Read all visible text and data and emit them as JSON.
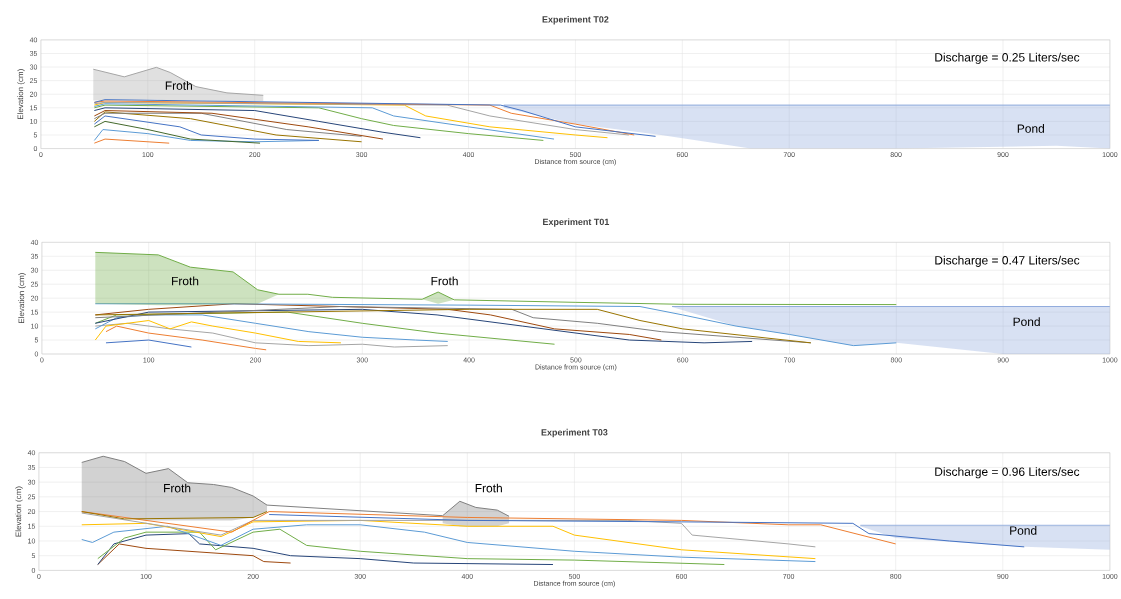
{
  "chart_data": [
    {
      "type": "line",
      "title": "Experiment T02",
      "xlabel": "Distance from source (cm)",
      "ylabel": "Elevation (cm)",
      "xlim": [
        0,
        1000
      ],
      "xticks": [
        0,
        100,
        200,
        300,
        400,
        500,
        600,
        700,
        800,
        900,
        1000
      ],
      "ylim": [
        0,
        40
      ],
      "yticks": [
        0,
        5,
        10,
        15,
        20,
        25,
        30,
        35,
        40
      ],
      "grid": true,
      "annotations": [
        "Discharge = 0.25 Liters/sec",
        "Froth",
        "Pond"
      ],
      "series": [
        {
          "color": "#a6a6a6",
          "x": [
            49,
            78,
            108,
            121,
            145,
            174,
            208
          ],
          "values": [
            29.2,
            26.4,
            29.9,
            28,
            22.8,
            20.5,
            19.6
          ],
          "upper": [
            29.2,
            26.4,
            29.9,
            28,
            22.8,
            20.5,
            19.6
          ],
          "lower": [
            17.7,
            17.8,
            18,
            17.8,
            17.8,
            17.5,
            17.5
          ]
        },
        {
          "color": "#8faadc",
          "x": [
            433,
            500,
            580,
            664,
            800,
            950,
            1000
          ],
          "values": [
            16,
            16,
            16,
            16,
            16,
            16,
            16
          ],
          "upper": [
            16,
            16,
            16,
            16,
            16,
            16,
            16
          ],
          "lower": [
            15,
            9,
            5,
            0,
            0,
            1,
            0
          ]
        },
        {
          "color": "#ed7d31",
          "x": [
            50,
            60,
            120
          ],
          "values": [
            2,
            3.5,
            2
          ]
        },
        {
          "color": "#5b9bd5",
          "x": [
            50,
            58,
            100,
            140,
            200,
            260
          ],
          "values": [
            3,
            7,
            5.5,
            3,
            2.5,
            3
          ]
        },
        {
          "color": "#43682b",
          "x": [
            50,
            60,
            100,
            140,
            205
          ],
          "values": [
            8,
            10,
            7,
            3.5,
            2
          ]
        },
        {
          "color": "#4472c4",
          "x": [
            50,
            60,
            130,
            150,
            200,
            260
          ],
          "values": [
            9,
            12,
            8,
            5,
            3.5,
            3
          ]
        },
        {
          "color": "#997300",
          "x": [
            50,
            60,
            140,
            220,
            300
          ],
          "values": [
            10,
            13.5,
            11,
            5,
            2.5
          ]
        },
        {
          "color": "#7f7f7f",
          "x": [
            50,
            60,
            150,
            230,
            300
          ],
          "values": [
            11,
            13,
            13,
            7,
            4.5
          ]
        },
        {
          "color": "#9e480e",
          "x": [
            50,
            60,
            160,
            250,
            320
          ],
          "values": [
            12,
            14,
            13,
            8,
            3.5
          ]
        },
        {
          "color": "#264478",
          "x": [
            50,
            60,
            200,
            260,
            320,
            355
          ],
          "values": [
            14,
            15,
            14,
            10,
            6,
            4
          ]
        },
        {
          "color": "#70ad47",
          "x": [
            50,
            60,
            260,
            300,
            330,
            400,
            470
          ],
          "values": [
            15,
            16,
            15,
            11,
            8.5,
            5.5,
            3
          ]
        },
        {
          "color": "#5b9bd5",
          "x": [
            50,
            60,
            310,
            330,
            400,
            480
          ],
          "values": [
            15.5,
            16.5,
            15,
            12,
            8,
            3.5
          ]
        },
        {
          "color": "#ffc000",
          "x": [
            50,
            60,
            340,
            360,
            420,
            500,
            530
          ],
          "values": [
            16,
            17,
            16,
            12,
            8,
            5,
            4
          ]
        },
        {
          "color": "#a5a5a5",
          "x": [
            50,
            60,
            380,
            420,
            500,
            550
          ],
          "values": [
            16.5,
            17,
            16,
            12,
            7,
            5
          ]
        },
        {
          "color": "#ed7d31",
          "x": [
            50,
            60,
            420,
            440,
            500,
            555
          ],
          "values": [
            17,
            17.5,
            16,
            13,
            9,
            5
          ]
        },
        {
          "color": "#4472c4",
          "x": [
            50,
            60,
            430,
            450,
            500,
            575
          ],
          "values": [
            17,
            18,
            16,
            14,
            8,
            4.5
          ]
        }
      ]
    },
    {
      "type": "line",
      "title": "Experiment T01",
      "xlabel": "Distance from source (cm)",
      "ylabel": "Elevation (cm)",
      "xlim": [
        0,
        1000
      ],
      "xticks": [
        0,
        100,
        200,
        300,
        400,
        500,
        600,
        700,
        800,
        900,
        1000
      ],
      "ylim": [
        0,
        40
      ],
      "yticks": [
        0,
        5,
        10,
        15,
        20,
        25,
        30,
        35,
        40
      ],
      "grid": true,
      "annotations": [
        "Discharge = 0.47 Liters/sec",
        "Froth",
        "Froth",
        "Pond"
      ],
      "series": [
        {
          "color": "#8faadc",
          "x": [
            590,
            650,
            700,
            760,
            800,
            900,
            1000
          ],
          "values": [
            17,
            17,
            17,
            17,
            17,
            17,
            17
          ],
          "upper": [
            17,
            17,
            17,
            17,
            17,
            17,
            17
          ],
          "lower": [
            16.8,
            10,
            7,
            3,
            4,
            0,
            0
          ]
        },
        {
          "color": "#4472c4",
          "x": [
            60,
            100,
            140
          ],
          "values": [
            4,
            5,
            2.5
          ]
        },
        {
          "color": "#ed7d31",
          "x": [
            60,
            70,
            100,
            150,
            200,
            210
          ],
          "values": [
            8,
            10,
            7.5,
            5,
            2,
            1.5
          ]
        },
        {
          "color": "#a5a5a5",
          "x": [
            50,
            80,
            120,
            160,
            200,
            250,
            300,
            330,
            380
          ],
          "values": [
            10,
            11,
            9,
            7.5,
            4,
            3,
            3.5,
            2.5,
            3
          ]
        },
        {
          "color": "#ffc000",
          "x": [
            50,
            60,
            100,
            120,
            140,
            160,
            200,
            240,
            280
          ],
          "values": [
            5,
            10,
            12,
            9,
            11.5,
            10,
            7.5,
            4.5,
            4
          ]
        },
        {
          "color": "#5b9bd5",
          "x": [
            50,
            70,
            100,
            150,
            200,
            250,
            300,
            350,
            380
          ],
          "values": [
            9,
            13,
            14,
            14,
            11,
            8,
            6,
            5,
            4.5
          ]
        },
        {
          "color": "#70ad47",
          "x": [
            50,
            70,
            230,
            300,
            370,
            480
          ],
          "values": [
            11,
            14,
            15,
            11,
            7.5,
            3.5
          ]
        },
        {
          "color": "#264478",
          "x": [
            50,
            100,
            300,
            370,
            450,
            550,
            620,
            665
          ],
          "values": [
            11,
            15,
            16,
            14,
            10,
            5,
            4,
            4.5
          ]
        },
        {
          "color": "#9e480e",
          "x": [
            50,
            100,
            180,
            380,
            420,
            480,
            550,
            580
          ],
          "values": [
            14,
            16,
            18,
            16,
            14,
            9,
            7,
            5
          ]
        },
        {
          "color": "#7f7f7f",
          "x": [
            50,
            280,
            440,
            460,
            520,
            580,
            720
          ],
          "values": [
            13,
            17,
            16,
            13,
            11,
            8,
            4
          ]
        },
        {
          "color": "#997300",
          "x": [
            50,
            400,
            520,
            560,
            600,
            720
          ],
          "values": [
            14,
            16,
            16,
            12,
            9,
            4
          ]
        },
        {
          "color": "#5b9bd5",
          "x": [
            50,
            150,
            400,
            560,
            600,
            650,
            700,
            760,
            800
          ],
          "values": [
            18,
            18,
            17.5,
            17,
            14,
            10,
            7,
            3,
            4
          ]
        },
        {
          "color": "#70ad47",
          "x": [
            50,
            109,
            139,
            179,
            202,
            222,
            249,
            272,
            356,
            371,
            386,
            500,
            600,
            800
          ],
          "values": [
            36.4,
            35.5,
            31.1,
            29.4,
            23,
            21.4,
            21.4,
            20.3,
            19.6,
            22.2,
            19.4,
            18.5,
            17.8,
            17.7
          ],
          "upper": [
            36.4,
            35.5,
            31.1,
            29.4,
            23,
            21.4,
            null,
            null,
            19.6,
            22.2,
            19.4,
            null,
            null,
            null
          ],
          "lower": [
            18,
            17.5,
            17.5,
            18,
            18,
            21.4,
            null,
            null,
            19.6,
            18,
            19.4,
            null,
            null,
            null
          ]
        }
      ]
    },
    {
      "type": "line",
      "title": "Experiment  T03",
      "xlabel": "Distance from source (cm)",
      "ylabel": "Elevation (cm)",
      "xlim": [
        0,
        1000
      ],
      "xticks": [
        0,
        100,
        200,
        300,
        400,
        500,
        600,
        700,
        800,
        900,
        1000
      ],
      "ylim": [
        0,
        40
      ],
      "yticks": [
        0,
        5,
        10,
        15,
        20,
        25,
        30,
        35,
        40
      ],
      "grid": true,
      "annotations": [
        "Discharge = 0.96 Liters/sec",
        "Froth",
        "Froth",
        "Pond"
      ],
      "series": [
        {
          "color": "#7f7f7f",
          "x": [
            40,
            60,
            80,
            100,
            121,
            139,
            163,
            180,
            200,
            213
          ],
          "values": [
            36.7,
            38.8,
            37,
            33,
            34.6,
            29.8,
            29.2,
            28.2,
            25.3,
            22.2
          ],
          "upper": [
            36.7,
            38.8,
            37,
            33,
            34.6,
            29.8,
            29.2,
            28.2,
            25.3,
            22.2
          ],
          "lower": [
            19.5,
            19,
            18,
            17,
            17,
            17,
            17,
            17,
            18,
            20
          ]
        },
        {
          "color": "#7f7f7f",
          "x": [
            377,
            393,
            408,
            428,
            439
          ],
          "values": [
            18.6,
            23.5,
            21.4,
            20.5,
            18.4
          ],
          "upper": [
            18.6,
            23.5,
            21.4,
            20.5,
            18.4
          ],
          "lower": [
            16,
            15,
            14.8,
            15,
            16
          ]
        },
        {
          "color": "#8faadc",
          "x": [
            767,
            800,
            920,
            1000
          ],
          "values": [
            15.4,
            15.4,
            15.4,
            15.4
          ],
          "upper": [
            15.4,
            15.4,
            15.4,
            15.4
          ],
          "lower": [
            15,
            11,
            8,
            7
          ]
        },
        {
          "color": "#7f7f7f",
          "x": [
            213,
            377
          ],
          "values": [
            22.2,
            18.6
          ]
        },
        {
          "color": "#9e480e",
          "x": [
            55,
            75,
            100,
            200,
            210,
            235
          ],
          "values": [
            2,
            9,
            7.5,
            5,
            3,
            2.5
          ]
        },
        {
          "color": "#264478",
          "x": [
            55,
            70,
            100,
            140,
            150,
            200,
            235,
            300,
            350,
            480
          ],
          "values": [
            2,
            9,
            12,
            12.5,
            9,
            7.5,
            5,
            4,
            2.5,
            2
          ]
        },
        {
          "color": "#70ad47",
          "x": [
            55,
            80,
            100,
            150,
            165,
            200,
            225,
            250,
            300,
            400,
            500,
            640
          ],
          "values": [
            4,
            11,
            13,
            13,
            7,
            13,
            14,
            8.5,
            6.5,
            4,
            3.5,
            2
          ]
        },
        {
          "color": "#5b9bd5",
          "x": [
            40,
            50,
            70,
            120,
            170,
            200,
            250,
            300,
            360,
            400,
            500,
            600,
            725
          ],
          "values": [
            10.5,
            9.5,
            13,
            15,
            8.5,
            14,
            15.5,
            15.5,
            13,
            9.5,
            6.5,
            4.5,
            3
          ]
        },
        {
          "color": "#ffc000",
          "x": [
            40,
            100,
            170,
            200,
            300,
            400,
            480,
            500,
            600,
            725
          ],
          "values": [
            15.5,
            16,
            11.5,
            16.5,
            17,
            15,
            15,
            12,
            7,
            4
          ]
        },
        {
          "color": "#a5a5a5",
          "x": [
            40,
            170,
            200,
            350,
            550,
            600,
            610,
            700,
            725
          ],
          "values": [
            19.5,
            12,
            17,
            17,
            17,
            16,
            12,
            9,
            8
          ]
        },
        {
          "color": "#ed7d31",
          "x": [
            40,
            100,
            180,
            215,
            400,
            600,
            700,
            730,
            800
          ],
          "values": [
            20,
            17,
            13,
            20,
            18,
            17,
            15.5,
            15.5,
            9
          ]
        },
        {
          "color": "#997300",
          "x": [
            40,
            80,
            200,
            213
          ],
          "values": [
            20,
            17.5,
            18,
            20
          ]
        },
        {
          "color": "#4472c4",
          "x": [
            215,
            400,
            600,
            760,
            775,
            850,
            920
          ],
          "values": [
            19,
            17,
            16.5,
            16,
            12.5,
            10,
            8
          ]
        }
      ]
    }
  ]
}
